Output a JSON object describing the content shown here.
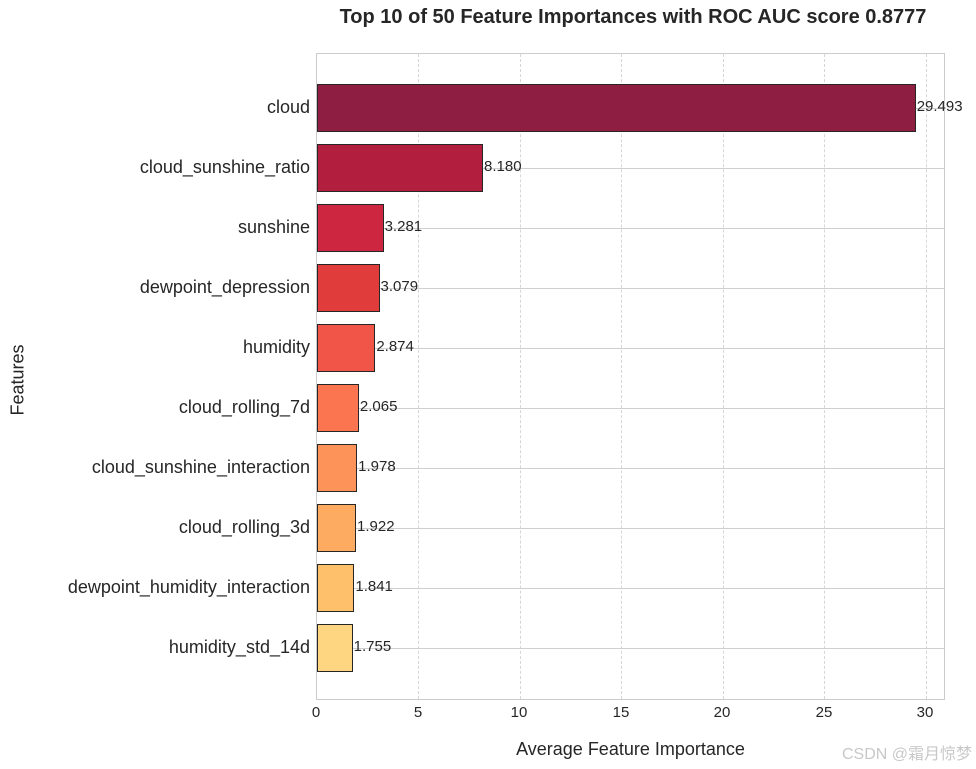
{
  "chart_data": {
    "type": "bar",
    "orientation": "horizontal",
    "title": "Top 10 of 50 Feature Importances with ROC AUC score 0.8777",
    "xlabel": "Average Feature Importance",
    "ylabel": "Features",
    "xlim": [
      0,
      31
    ],
    "xticks": [
      "0",
      "5",
      "10",
      "15",
      "20",
      "25",
      "30"
    ],
    "grid": true,
    "categories": [
      "cloud",
      "cloud_sunshine_ratio",
      "sunshine",
      "dewpoint_depression",
      "humidity",
      "cloud_rolling_7d",
      "cloud_sunshine_interaction",
      "cloud_rolling_3d",
      "dewpoint_humidity_interaction",
      "humidity_std_14d"
    ],
    "values": [
      29.493,
      8.18,
      3.281,
      3.079,
      2.874,
      2.065,
      1.978,
      1.922,
      1.841,
      1.755
    ],
    "value_labels": [
      "29.493",
      "8.180",
      "3.281",
      "3.079",
      "2.874",
      "2.065",
      "1.978",
      "1.922",
      "1.841",
      "1.755"
    ],
    "colors": [
      "#8e1f43",
      "#b21f3e",
      "#cd2640",
      "#e03c3c",
      "#f05548",
      "#fb7550",
      "#fd9359",
      "#feab62",
      "#fec06a",
      "#fed681"
    ]
  },
  "watermark": "CSDN @霜月惊梦"
}
